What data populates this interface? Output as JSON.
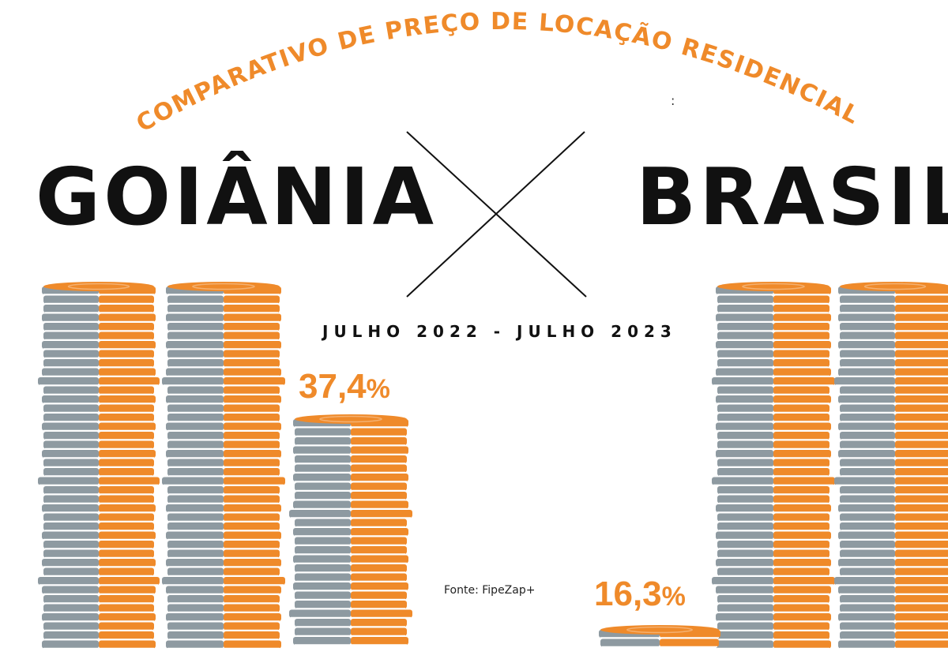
{
  "title": "COMPARATIVO DE PREÇO DE LOCAÇÃO RESIDENCIAL",
  "left_city": "GOIÂNIA",
  "right_city": "BRASIL",
  "colon": ":",
  "period": "JULHO 2022 - JULHO 2023",
  "source": "Fonte: FipeZap+",
  "colors": {
    "accent": "#ef8a2a",
    "coin_grey": "#8e9aa1",
    "text": "#111111"
  },
  "icons": [
    "coin-stack-icon",
    "versus-cross-icon"
  ],
  "chart_data": {
    "type": "bar",
    "title": "COMPARATIVO DE PREÇO DE LOCAÇÃO RESIDENCIAL",
    "categories": [
      "GOIÂNIA",
      "BRASIL"
    ],
    "values": [
      37.4,
      16.3
    ],
    "value_labels": [
      "37,4%",
      "16,3%"
    ],
    "unit": "%"
  }
}
